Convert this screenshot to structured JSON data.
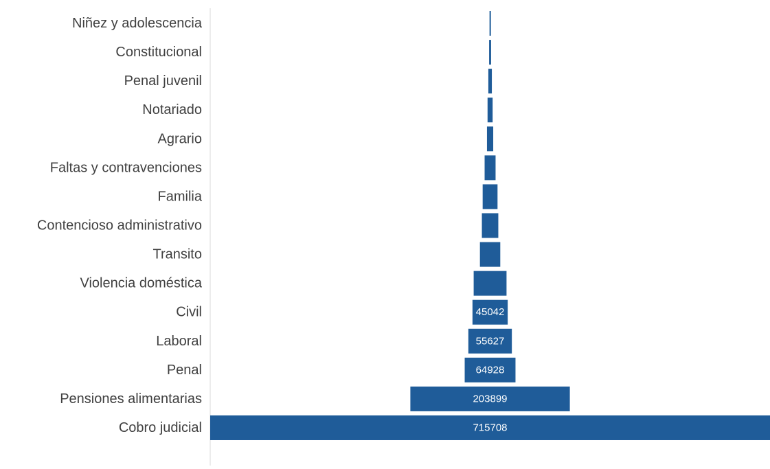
{
  "chart_data": {
    "type": "bar",
    "orientation": "horizontal",
    "style": "funnel",
    "bar_color": "#1F5C99",
    "axis_color": "#D9D9D9",
    "label_color": "#404040",
    "data_label_color": "#FFFFFF",
    "categories": [
      "Niñez y adolescencia",
      "Constitucional",
      "Penal juvenil",
      "Notariado",
      "Agrario",
      "Faltas y contravenciones",
      "Familia",
      "Contencioso administrativo",
      "Transito",
      "Violencia doméstica",
      "Civil",
      "Laboral",
      "Penal",
      "Pensiones alimentarias",
      "Cobro judicial"
    ],
    "values": [
      1500,
      2500,
      4500,
      6500,
      8000,
      14000,
      19000,
      21000,
      26000,
      42000,
      45042,
      55627,
      64928,
      203899,
      715708
    ],
    "data_labels": [
      "",
      "",
      "",
      "",
      "",
      "",
      "",
      "",
      "",
      "",
      "45042",
      "55627",
      "64928",
      "203899",
      "715708"
    ]
  }
}
